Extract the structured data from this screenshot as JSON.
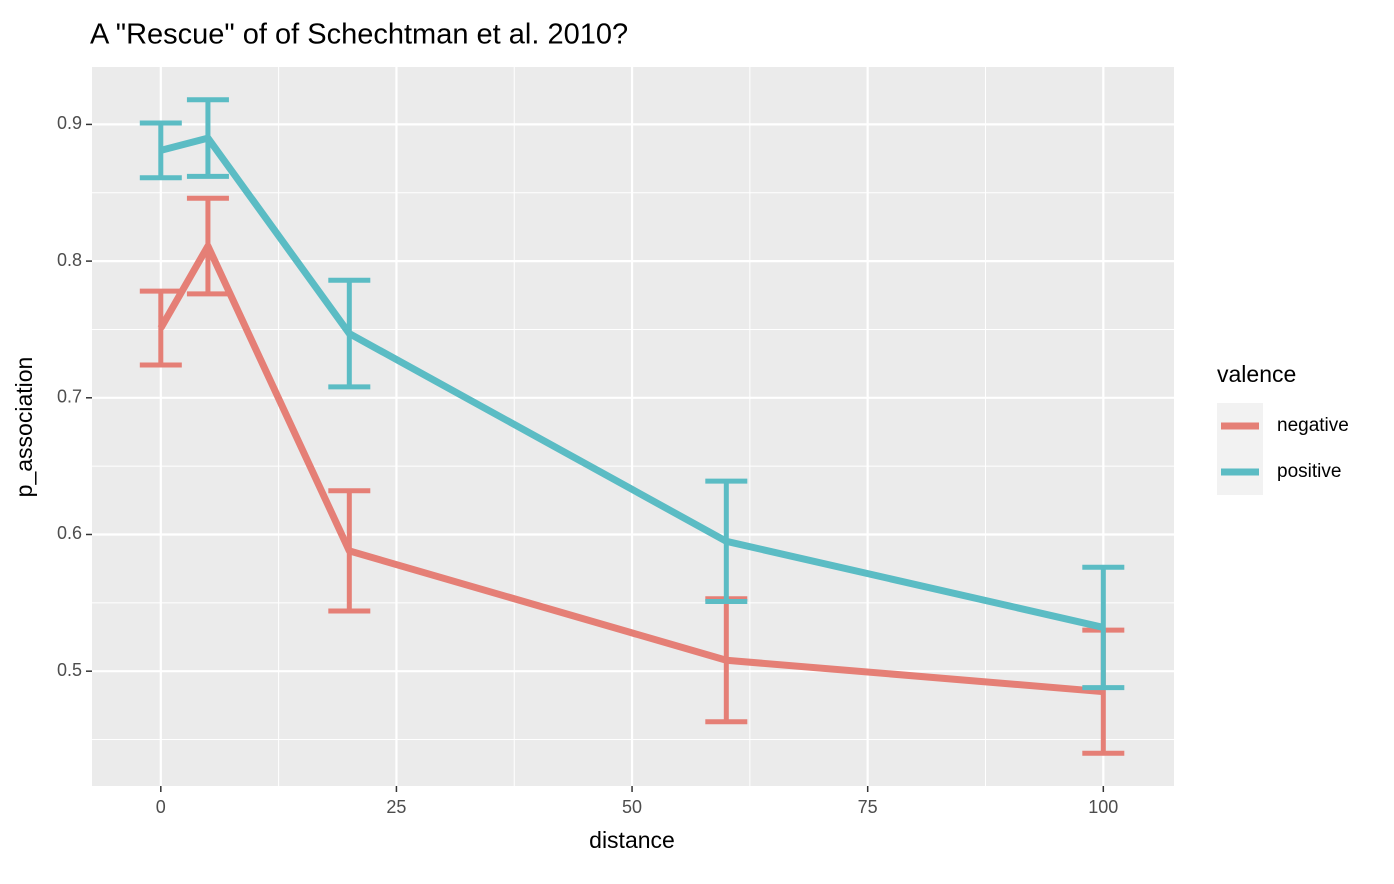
{
  "chart_data": {
    "type": "line",
    "title": "A \"Rescue\" of of Schechtman et al. 2010?",
    "x_label": "distance",
    "y_label": "p_association",
    "xlim": [
      -7.3,
      107.5
    ],
    "ylim": [
      0.416,
      0.942
    ],
    "xticks": [
      0,
      25,
      50,
      75,
      100
    ],
    "yticks": [
      0.5,
      0.6,
      0.7,
      0.8,
      0.9
    ],
    "grid": true,
    "legend_title": "valence",
    "legend_position": "right",
    "x": [
      0,
      5,
      20,
      60,
      100
    ],
    "series": [
      {
        "name": "negative",
        "color": "#E57F76",
        "values": [
          0.751,
          0.811,
          0.588,
          0.508,
          0.485
        ],
        "errors": [
          0.027,
          0.035,
          0.044,
          0.045,
          0.045
        ]
      },
      {
        "name": "positive",
        "color": "#5BBCC4",
        "values": [
          0.881,
          0.89,
          0.747,
          0.595,
          0.532
        ],
        "errors": [
          0.02,
          0.028,
          0.039,
          0.044,
          0.044
        ]
      }
    ]
  }
}
